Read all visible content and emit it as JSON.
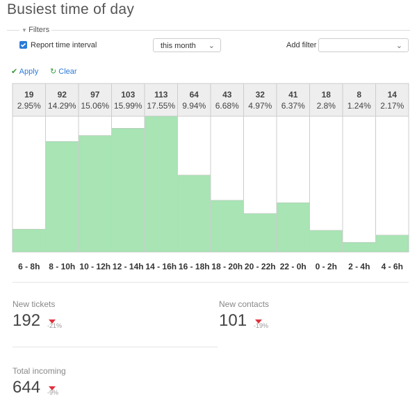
{
  "header": {
    "title": "Busiest time of day"
  },
  "filters": {
    "legend": "Filters",
    "report_time_interval": "Report time interval",
    "period": "this month",
    "add_filter": "Add filter"
  },
  "actions": {
    "apply": "Apply",
    "clear": "Clear"
  },
  "chart_data": {
    "type": "bar",
    "categories": [
      "6 - 8h",
      "8 - 10h",
      "10 - 12h",
      "12 - 14h",
      "14 - 16h",
      "16 - 18h",
      "18 - 20h",
      "20 - 22h",
      "22 - 0h",
      "0 - 2h",
      "2 - 4h",
      "4 - 6h"
    ],
    "values": [
      19,
      92,
      97,
      103,
      113,
      64,
      43,
      32,
      41,
      18,
      8,
      14
    ],
    "shares": [
      "2.95%",
      "14.29%",
      "15.06%",
      "15.99%",
      "17.55%",
      "9.94%",
      "6.68%",
      "4.97%",
      "6.37%",
      "2.8%",
      "1.24%",
      "2.17%"
    ],
    "color": "#a8e4b4"
  },
  "stats": [
    {
      "label": "New tickets",
      "value": 192,
      "change": "-21%"
    },
    {
      "label": "New contacts",
      "value": 101,
      "change": "-19%"
    },
    {
      "label": "Total incoming",
      "value": 644,
      "change": "-9%"
    }
  ]
}
